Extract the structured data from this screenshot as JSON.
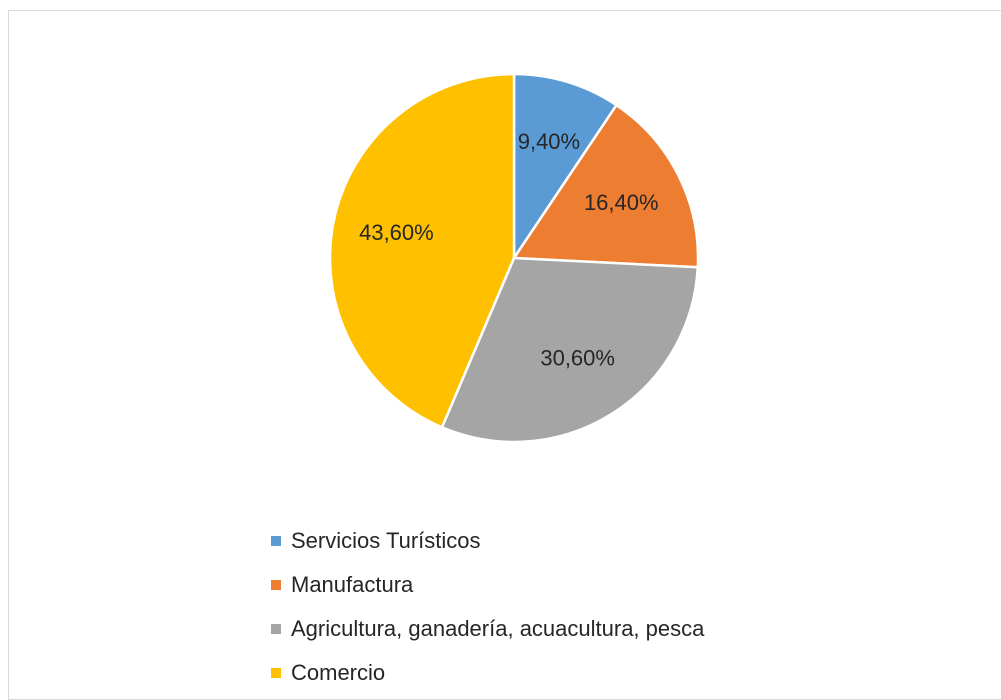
{
  "chart_data": {
    "type": "pie",
    "title": "",
    "categories": [
      "Servicios Turísticos",
      "Manufactura",
      "Agricultura, ganadería, acuacultura, pesca",
      "Comercio"
    ],
    "values": [
      9.4,
      16.4,
      30.6,
      43.6
    ],
    "data_labels": [
      "9,40%",
      "16,40%",
      "30,60%",
      "43,60%"
    ],
    "colors": [
      "#5b9bd5",
      "#ed7d31",
      "#a5a5a5",
      "#ffc000"
    ],
    "legend_position": "bottom",
    "start_angle": "12 o'clock",
    "direction": "clockwise"
  }
}
